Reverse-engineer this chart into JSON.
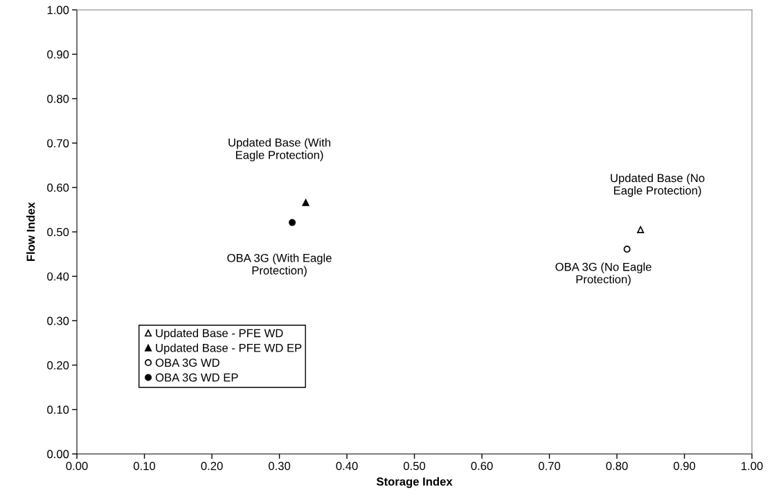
{
  "chart_data": {
    "type": "scatter",
    "xlabel": "Storage Index",
    "ylabel": "Flow Index",
    "series": [
      {
        "name": "Updated Base - PFE WD",
        "color": "#ffffff",
        "marker": "triangle",
        "x": [
          0.835
        ],
        "values": [
          0.505
        ]
      },
      {
        "name": "Updated Base - PFE WD EP",
        "color": "#000000",
        "marker": "triangle",
        "x": [
          0.339
        ],
        "values": [
          0.566
        ]
      },
      {
        "name": "OBA 3G WD",
        "color": "#ffffff",
        "marker": "circle",
        "x": [
          0.815
        ],
        "values": [
          0.461
        ]
      },
      {
        "name": "OBA 3G WD EP",
        "color": "#000000",
        "marker": "circle",
        "x": [
          0.319
        ],
        "values": [
          0.521
        ]
      }
    ],
    "annotations": [
      "Updated Base (With\nEagle Protection)",
      "OBA 3G (With Eagle\nProtection)",
      "Updated Base (No\nEagle Protection)",
      "OBA 3G (No Eagle\nProtection)"
    ],
    "xlim": [
      0,
      1
    ],
    "ylim": [
      0,
      1
    ],
    "xticks": [
      {
        "value": 0,
        "label": "0.00"
      },
      {
        "value": 0.1,
        "label": "0.10"
      },
      {
        "value": 0.2,
        "label": "0.20"
      },
      {
        "value": 0.3,
        "label": "0.30"
      },
      {
        "value": 0.4,
        "label": "0.40"
      },
      {
        "value": 0.5,
        "label": "0.50"
      },
      {
        "value": 0.6,
        "label": "0.60"
      },
      {
        "value": 0.7,
        "label": "0.70"
      },
      {
        "value": 0.8,
        "label": "0.80"
      },
      {
        "value": 0.9,
        "label": "0.90"
      },
      {
        "value": 1,
        "label": "1.00"
      }
    ],
    "yticks": [
      {
        "value": 0,
        "label": "0.00"
      },
      {
        "value": 0.1,
        "label": "0.10"
      },
      {
        "value": 0.2,
        "label": "0.20"
      },
      {
        "value": 0.3,
        "label": "0.30"
      },
      {
        "value": 0.4,
        "label": "0.40"
      },
      {
        "value": 0.5,
        "label": "0.50"
      },
      {
        "value": 0.6,
        "label": "0.60"
      },
      {
        "value": 0.7,
        "label": "0.70"
      },
      {
        "value": 0.8,
        "label": "0.80"
      },
      {
        "value": 0.9,
        "label": "0.90"
      },
      {
        "value": 1,
        "label": "1.00"
      }
    ],
    "grid": false,
    "legend": "bottom left"
  }
}
